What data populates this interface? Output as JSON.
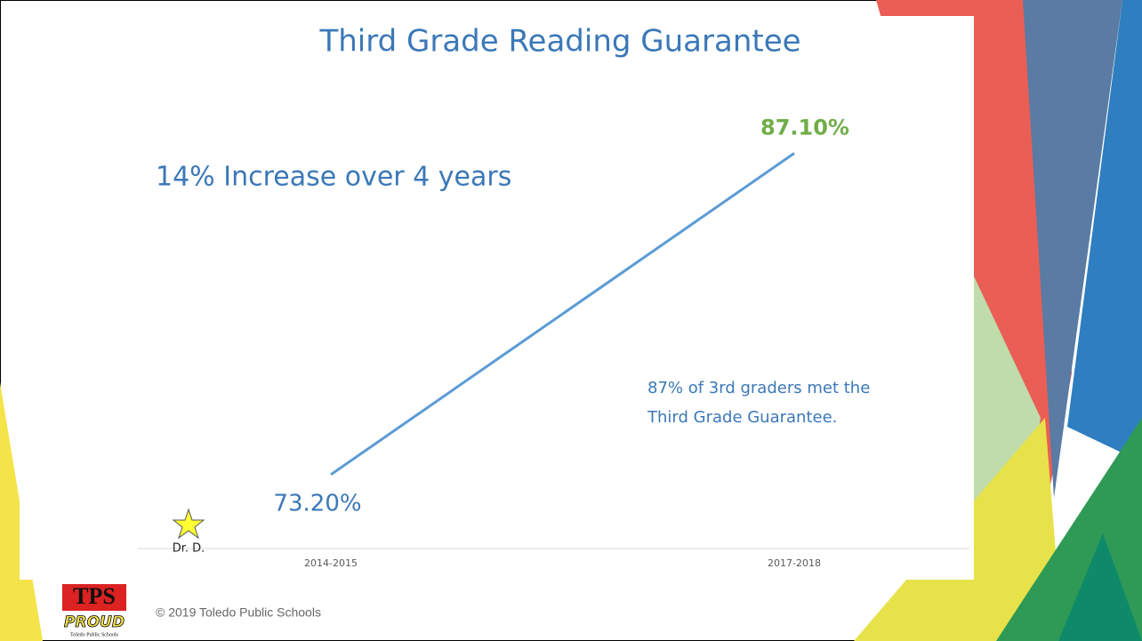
{
  "title": "Third Grade Reading Guarantee",
  "chart_data": {
    "type": "line",
    "categories": [
      "2014-2015",
      "2017-2018"
    ],
    "values": [
      73.2,
      87.1
    ],
    "value_labels": [
      "73.20%",
      "87.10%"
    ],
    "color": "#5b9bd5",
    "ylim": [
      70,
      88
    ]
  },
  "annotations": [
    "14% Increase over 4 years",
    "87% of 3rd graders met the",
    "Third Grade Guarantee."
  ],
  "star_label": "Dr. D.",
  "footer": "© 2019 Toledo Public Schools",
  "logo": {
    "top": "TPS",
    "middle": "PROUD",
    "bottom": "Toledo Public Schools"
  }
}
